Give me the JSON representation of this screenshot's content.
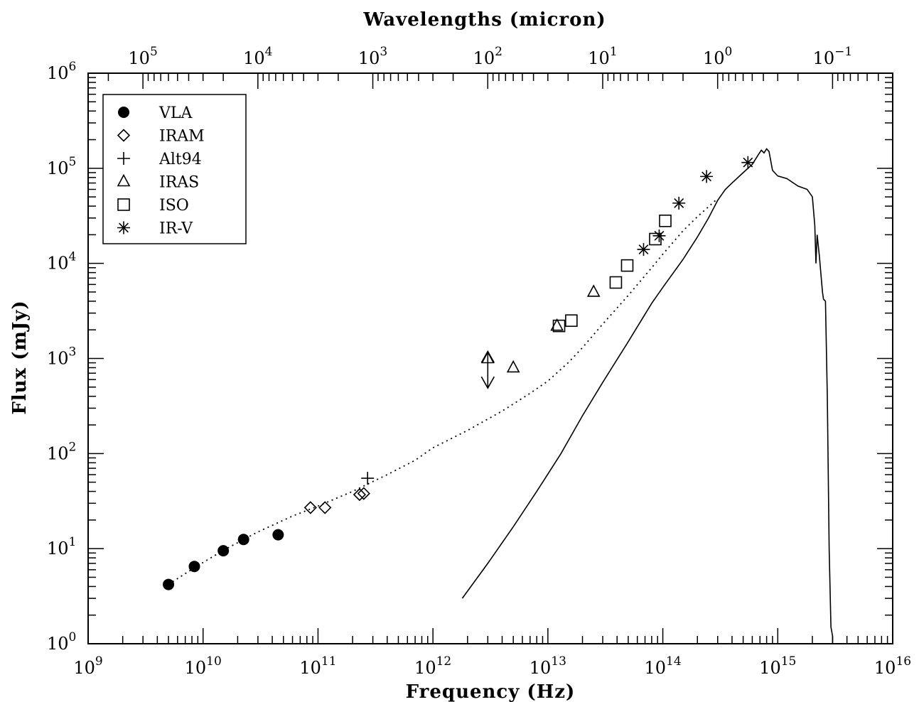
{
  "chart_data": {
    "type": "scatter",
    "title": "",
    "xlabel": "Frequency  (Hz)",
    "ylabel": "Flux  (mJy)",
    "x2label": "Wavelengths (micron)",
    "xscale": "log",
    "yscale": "log",
    "xlim": [
      1000000000.0,
      1e+16
    ],
    "ylim": [
      1,
      1000000
    ],
    "x2lim_micron": [
      299792.458,
      0.0299792458
    ],
    "legend_position": "top-left",
    "x_ticks": [
      {
        "base": "10",
        "exp": "9",
        "value": 1000000000.0
      },
      {
        "base": "10",
        "exp": "10",
        "value": 10000000000.0
      },
      {
        "base": "10",
        "exp": "11",
        "value": 100000000000.0
      },
      {
        "base": "10",
        "exp": "12",
        "value": 1000000000000.0
      },
      {
        "base": "10",
        "exp": "13",
        "value": 10000000000000.0
      },
      {
        "base": "10",
        "exp": "14",
        "value": 100000000000000.0
      },
      {
        "base": "10",
        "exp": "15",
        "value": 1000000000000000.0
      },
      {
        "base": "10",
        "exp": "16",
        "value": 1e+16
      }
    ],
    "y_ticks": [
      {
        "base": "10",
        "exp": "0",
        "value": 1
      },
      {
        "base": "10",
        "exp": "1",
        "value": 10
      },
      {
        "base": "10",
        "exp": "2",
        "value": 100
      },
      {
        "base": "10",
        "exp": "3",
        "value": 1000
      },
      {
        "base": "10",
        "exp": "4",
        "value": 10000
      },
      {
        "base": "10",
        "exp": "5",
        "value": 100000
      },
      {
        "base": "10",
        "exp": "6",
        "value": 1000000
      }
    ],
    "x2_ticks": [
      {
        "base": "10",
        "exp": "5",
        "value": 100000
      },
      {
        "base": "10",
        "exp": "4",
        "value": 10000
      },
      {
        "base": "10",
        "exp": "3",
        "value": 1000
      },
      {
        "base": "10",
        "exp": "2",
        "value": 100
      },
      {
        "base": "10",
        "exp": "1",
        "value": 10
      },
      {
        "base": "10",
        "exp": "0",
        "value": 1
      },
      {
        "base": "10",
        "exp": "−1",
        "value": 0.1
      }
    ],
    "series": [
      {
        "name": "VLA",
        "marker": "filled-circle",
        "x": [
          5000000000.0,
          8400000000.0,
          15000000000.0,
          22500000000.0,
          45000000000.0
        ],
        "y": [
          4.2,
          6.5,
          9.5,
          12.5,
          14
        ]
      },
      {
        "name": "IRAM",
        "marker": "open-diamond",
        "x": [
          86000000000.0,
          115000000000.0,
          230000000000.0,
          250000000000.0
        ],
        "y": [
          27,
          27,
          37,
          38
        ]
      },
      {
        "name": "Alt94",
        "marker": "plus",
        "x": [
          270000000000.0
        ],
        "y": [
          55
        ]
      },
      {
        "name": "IRAS",
        "marker": "open-triangle",
        "x": [
          3000000000000.0,
          5000000000000.0,
          12000000000000.0,
          25000000000000.0
        ],
        "y": [
          1000,
          800,
          2200,
          5000
        ]
      },
      {
        "name": "ISO",
        "marker": "open-square",
        "x": [
          12500000000000.0,
          16000000000000.0,
          39000000000000.0,
          49000000000000.0,
          86000000000000.0,
          105000000000000.0
        ],
        "y": [
          2200,
          2500,
          6300,
          9500,
          18000,
          28000
        ]
      },
      {
        "name": "IR-V",
        "marker": "asterisk",
        "x": [
          68000000000000.0,
          93000000000000.0,
          138000000000000.0,
          240000000000000.0,
          550000000000000.0
        ],
        "y": [
          14000,
          19500,
          43000,
          82000,
          115000
        ]
      }
    ],
    "upper_limit_arrow": {
      "x": 3000000000000.0,
      "y": [
        600,
        1000
      ]
    },
    "model_curves": [
      {
        "name": "",
        "style": "dotted",
        "x": [
          5000000000.0,
          8400000000.0,
          15000000000.0,
          30000000000.0,
          60000000000.0,
          100000000000.0,
          200000000000.0,
          400000000000.0,
          700000000000.0,
          1000000000000.0,
          2000000000000.0,
          4000000000000.0,
          7000000000000.0,
          10000000000000.0,
          15000000000000.0,
          20000000000000.0,
          30000000000000.0,
          50000000000000.0,
          80000000000000.0,
          100000000000000.0,
          150000000000000.0,
          200000000000000.0,
          300000000000000.0
        ],
        "y": [
          4.2,
          6.3,
          9.6,
          15,
          22,
          28,
          40,
          60,
          85,
          115,
          175,
          280,
          430,
          580,
          900,
          1300,
          2300,
          4600,
          9000,
          12500,
          22000,
          31000,
          48000
        ]
      },
      {
        "name": "",
        "style": "solid",
        "x": [
          1800000000000.0,
          3000000000000.0,
          5000000000000.0,
          8000000000000.0,
          13000000000000.0,
          20000000000000.0,
          30000000000000.0,
          50000000000000.0,
          80000000000000.0,
          100000000000000.0,
          150000000000000.0,
          200000000000000.0,
          250000000000000.0,
          300000000000000.0,
          350000000000000.0,
          400000000000000.0,
          500000000000000.0,
          600000000000000.0,
          680000000000000.0,
          720000000000000.0,
          760000000000000.0,
          800000000000000.0,
          840000000000000.0,
          900000000000000.0,
          1000000000000000.0,
          1200000000000000.0,
          1500000000000000.0,
          1800000000000000.0,
          2000000000000000.0,
          2100000000000000.0,
          2150000000000000.0,
          2200000000000000.0,
          2300000000000000.0,
          2450000000000000.0,
          2500000000000000.0,
          2600000000000000.0,
          2700000000000000.0,
          2800000000000000.0,
          2900000000000000.0,
          3000000000000000.0,
          3000000000000000.0
        ],
        "y": [
          3,
          7,
          17,
          40,
          100,
          250,
          560,
          1500,
          3800,
          5600,
          11000,
          19000,
          30000,
          46000,
          60000,
          70000,
          90000,
          110000,
          140000,
          155000,
          145000,
          160000,
          150000,
          95000,
          83000,
          78000,
          65000,
          60000,
          50000,
          25000,
          10000,
          20000,
          12000,
          5000,
          4200,
          4000,
          400,
          10,
          1.5,
          1.2,
          1
        ]
      }
    ],
    "legend": [
      {
        "name": "VLA",
        "marker": "filled-circle"
      },
      {
        "name": "IRAM",
        "marker": "open-diamond"
      },
      {
        "name": "Alt94",
        "marker": "plus"
      },
      {
        "name": "IRAS",
        "marker": "open-triangle"
      },
      {
        "name": "ISO",
        "marker": "open-square"
      },
      {
        "name": "IR-V",
        "marker": "asterisk"
      }
    ]
  }
}
